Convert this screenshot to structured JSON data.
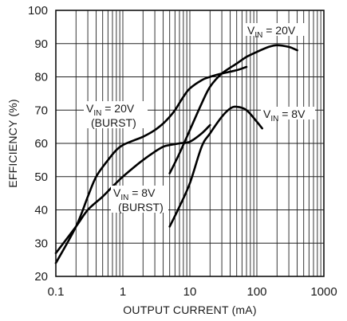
{
  "chart_data": {
    "type": "line",
    "title": "",
    "xlabel": "OUTPUT CURRENT (mA)",
    "ylabel": "EFFICIENCY (%)",
    "xscale": "log",
    "xlim": [
      0.1,
      1000
    ],
    "ylim": [
      20,
      100
    ],
    "xticks": [
      "0.1",
      "1",
      "10",
      "100",
      "1000"
    ],
    "yticks": [
      "20",
      "30",
      "40",
      "50",
      "60",
      "70",
      "80",
      "90",
      "100"
    ],
    "grid": true,
    "series": [
      {
        "name": "V_IN = 20V (BURST)",
        "label_main": "V",
        "label_sub": "IN",
        "label_rest": " = 20V",
        "label_line2": "(BURST)",
        "x": [
          0.1,
          0.2,
          0.3,
          0.4,
          0.6,
          0.8,
          1,
          1.5,
          2,
          3,
          4,
          5,
          6,
          8,
          10,
          15,
          20,
          30,
          50,
          70
        ],
        "y": [
          24,
          35,
          44,
          50,
          55,
          58,
          59.5,
          61,
          62,
          64,
          66,
          68,
          70,
          74,
          76.5,
          79,
          80,
          81,
          82,
          83
        ]
      },
      {
        "name": "V_IN = 8V (BURST)",
        "label_main": "V",
        "label_sub": "IN",
        "label_rest": " = 8V",
        "label_line2": "(BURST)",
        "x": [
          0.1,
          0.2,
          0.3,
          0.5,
          0.7,
          1,
          1.5,
          2,
          3,
          4,
          5,
          7,
          10,
          15,
          20
        ],
        "y": [
          27,
          35,
          40,
          44,
          47,
          50,
          53,
          55,
          57.5,
          59,
          59.5,
          60,
          60.5,
          63,
          65.5
        ]
      },
      {
        "name": "V_IN = 20V",
        "label_main": "V",
        "label_sub": "IN",
        "label_rest": " = 20V",
        "label_line2": "",
        "x": [
          5,
          7,
          10,
          15,
          20,
          30,
          50,
          70,
          100,
          150,
          200,
          300,
          400
        ],
        "y": [
          51,
          57,
          64,
          72,
          77,
          81,
          84,
          86,
          87.5,
          89,
          89.5,
          89,
          88
        ]
      },
      {
        "name": "V_IN = 8V",
        "label_main": "V",
        "label_sub": "IN",
        "label_rest": " = 8V",
        "label_line2": "",
        "x": [
          5,
          7,
          10,
          15,
          20,
          30,
          40,
          50,
          70,
          100,
          120
        ],
        "y": [
          35,
          41,
          48,
          59,
          63,
          68,
          70.5,
          71,
          70,
          66.5,
          64.5
        ]
      }
    ]
  }
}
